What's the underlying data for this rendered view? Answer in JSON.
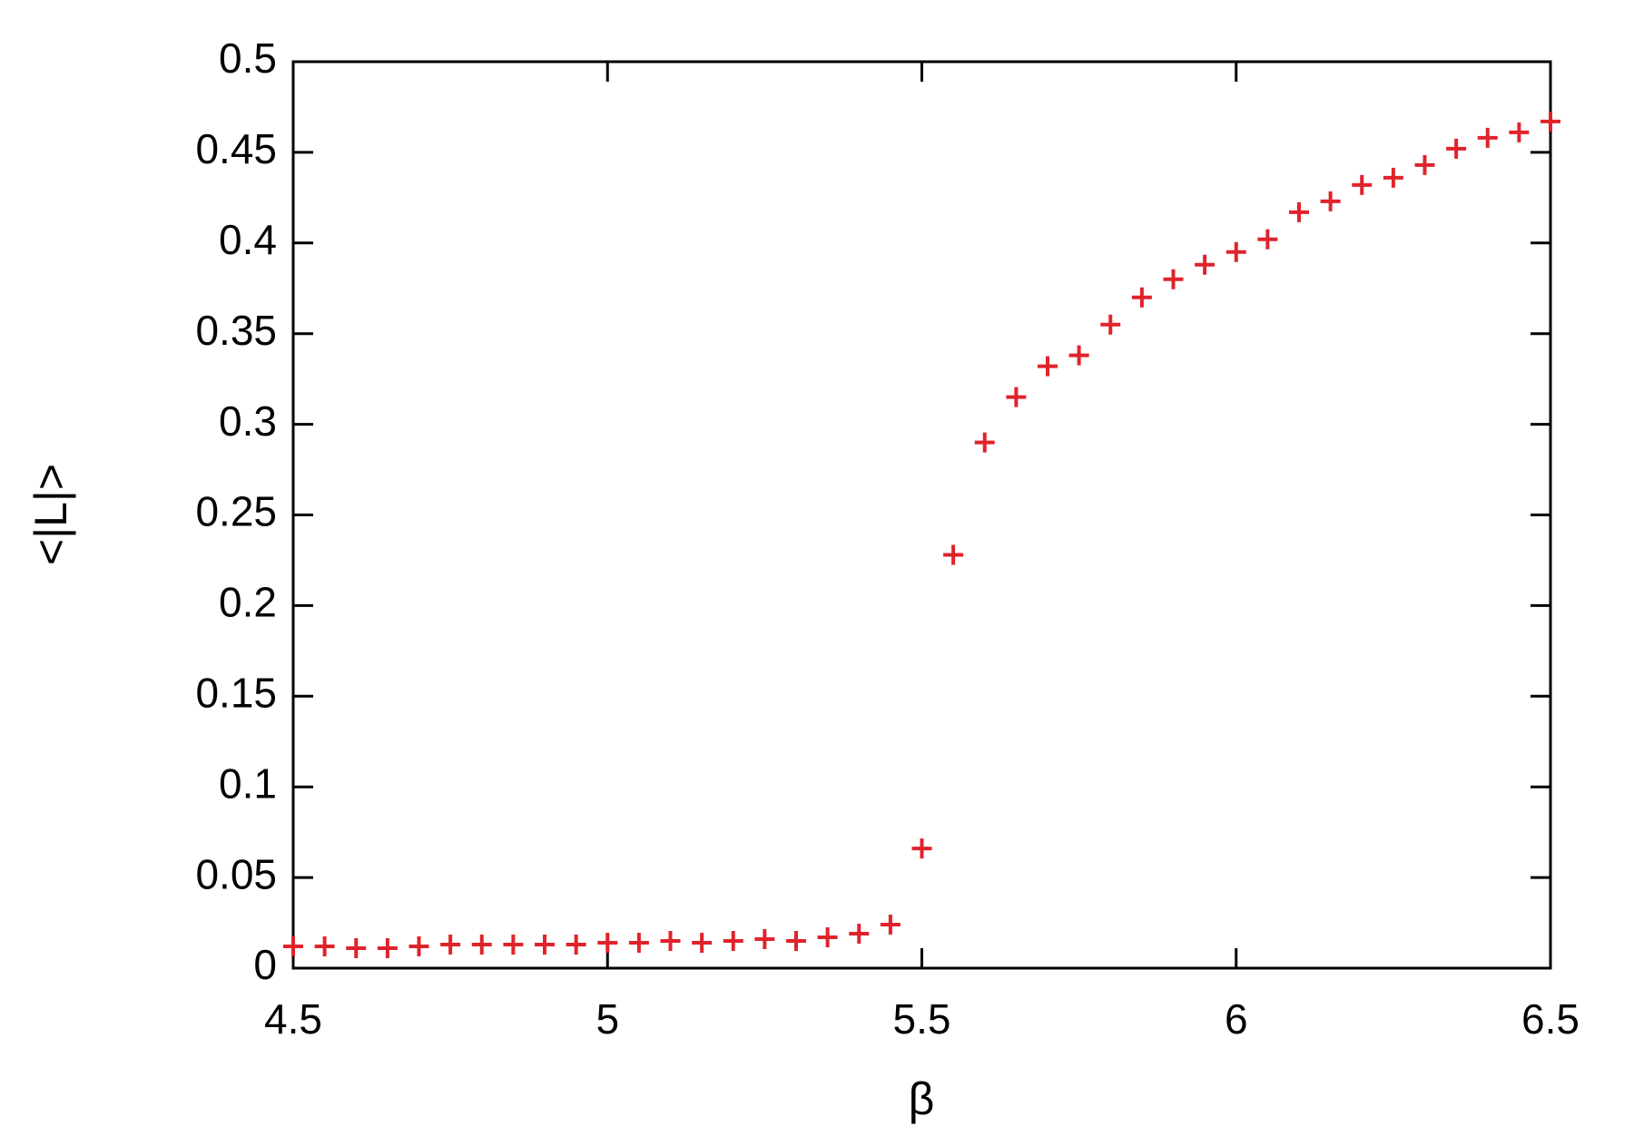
{
  "chart_data": {
    "type": "scatter",
    "marker": "+",
    "color": "#e0232b",
    "x_label": "β",
    "y_label": "<|L|>",
    "x": [
      4.5,
      4.55,
      4.6,
      4.65,
      4.7,
      4.75,
      4.8,
      4.85,
      4.9,
      4.95,
      5.0,
      5.05,
      5.1,
      5.15,
      5.2,
      5.25,
      5.3,
      5.35,
      5.4,
      5.45,
      5.5,
      5.55,
      5.6,
      5.65,
      5.7,
      5.75,
      5.8,
      5.85,
      5.9,
      5.95,
      6.0,
      6.05,
      6.1,
      6.15,
      6.2,
      6.25,
      6.3,
      6.35,
      6.4,
      6.45,
      6.5
    ],
    "values": [
      0.012,
      0.012,
      0.011,
      0.011,
      0.012,
      0.013,
      0.013,
      0.013,
      0.013,
      0.013,
      0.014,
      0.014,
      0.015,
      0.014,
      0.015,
      0.016,
      0.015,
      0.017,
      0.019,
      0.024,
      0.066,
      0.228,
      0.29,
      0.315,
      0.332,
      0.338,
      0.355,
      0.37,
      0.38,
      0.388,
      0.395,
      0.402,
      0.417,
      0.423,
      0.432,
      0.436,
      0.443,
      0.452,
      0.458,
      0.461,
      0.467
    ],
    "xlim": [
      4.5,
      6.5
    ],
    "xticks": [
      4.5,
      5,
      5.5,
      6,
      6.5
    ],
    "ylim": [
      0,
      0.5
    ],
    "yticks": [
      0,
      0.05,
      0.1,
      0.15,
      0.2,
      0.25,
      0.3,
      0.35,
      0.4,
      0.45,
      0.5
    ]
  }
}
